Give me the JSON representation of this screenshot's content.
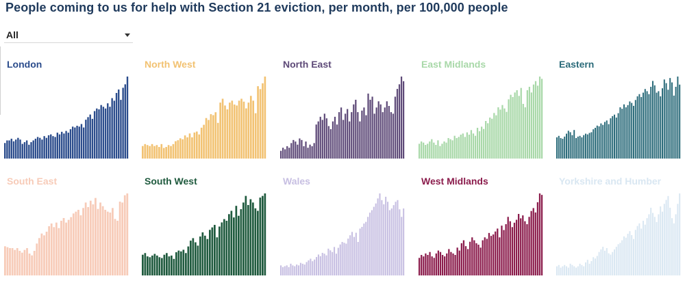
{
  "title": "People coming to us for help with Section 21 eviction, per month, per 100,000 people",
  "filter": {
    "value": "All"
  },
  "chart_data": [
    {
      "type": "bar",
      "title": "London",
      "color": "#2b4c8c",
      "values": [
        18,
        21,
        21,
        23,
        20,
        22,
        24,
        22,
        17,
        19,
        21,
        16,
        19,
        21,
        23,
        25,
        24,
        22,
        26,
        24,
        27,
        28,
        26,
        25,
        30,
        28,
        31,
        29,
        32,
        30,
        34,
        37,
        36,
        38,
        37,
        40,
        36,
        45,
        48,
        51,
        46,
        55,
        58,
        57,
        62,
        60,
        58,
        64,
        60,
        70,
        67,
        76,
        80,
        68,
        82,
        86,
        95
      ]
    },
    {
      "type": "bar",
      "title": "North West",
      "color": "#f2c272",
      "values": [
        13,
        15,
        14,
        13,
        15,
        13,
        14,
        12,
        15,
        11,
        12,
        14,
        13,
        15,
        18,
        19,
        21,
        20,
        24,
        22,
        26,
        22,
        27,
        28,
        25,
        32,
        35,
        42,
        40,
        46,
        45,
        48,
        37,
        58,
        62,
        55,
        51,
        58,
        60,
        56,
        55,
        60,
        62,
        59,
        52,
        58,
        65,
        60,
        47,
        75,
        72,
        78,
        85
      ]
    },
    {
      "type": "bar",
      "title": "North East",
      "color": "#5e4a78",
      "values": [
        5,
        7,
        6,
        8,
        7,
        10,
        12,
        11,
        9,
        13,
        12,
        8,
        11,
        7,
        9,
        8,
        10,
        22,
        24,
        27,
        25,
        29,
        26,
        21,
        19,
        24,
        27,
        22,
        30,
        33,
        25,
        29,
        32,
        24,
        30,
        35,
        38,
        30,
        24,
        31,
        33,
        28,
        42,
        38,
        40,
        29,
        33,
        37,
        35,
        30,
        33,
        37,
        34,
        30,
        29,
        40,
        45,
        48,
        53,
        50
      ]
    },
    {
      "type": "bar",
      "title": "East Midlands",
      "color": "#a8d8a8",
      "values": [
        13,
        15,
        14,
        12,
        13,
        15,
        17,
        14,
        12,
        16,
        11,
        13,
        15,
        14,
        18,
        17,
        16,
        20,
        18,
        19,
        21,
        22,
        19,
        23,
        21,
        25,
        22,
        20,
        27,
        24,
        28,
        26,
        33,
        31,
        36,
        35,
        40,
        38,
        45,
        43,
        47,
        44,
        41,
        52,
        56,
        54,
        58,
        60,
        55,
        62,
        48,
        45,
        60,
        63,
        58,
        65,
        68,
        64,
        72,
        70
      ]
    },
    {
      "type": "bar",
      "title": "Eastern",
      "color": "#2b6b7a",
      "values": [
        29,
        31,
        28,
        27,
        30,
        34,
        38,
        36,
        32,
        39,
        28,
        30,
        31,
        29,
        32,
        34,
        33,
        35,
        36,
        40,
        42,
        45,
        44,
        48,
        46,
        50,
        52,
        47,
        55,
        58,
        60,
        56,
        62,
        70,
        68,
        74,
        70,
        73,
        78,
        76,
        72,
        80,
        85,
        88,
        84,
        90,
        95,
        92,
        88,
        98,
        106,
        100,
        90,
        92,
        85,
        96,
        108,
        103,
        94,
        110,
        104,
        86,
        98,
        112,
        101
      ]
    },
    {
      "type": "bar",
      "title": "South East",
      "color": "#f7cbb8",
      "values": [
        32,
        31,
        30,
        30,
        28,
        30,
        27,
        25,
        28,
        30,
        24,
        22,
        27,
        35,
        41,
        46,
        44,
        48,
        54,
        57,
        53,
        58,
        52,
        60,
        63,
        58,
        61,
        64,
        68,
        70,
        72,
        66,
        74,
        80,
        75,
        82,
        78,
        85,
        73,
        80,
        76,
        72,
        70,
        69,
        74,
        62,
        60,
        81,
        80,
        88,
        90
      ]
    },
    {
      "type": "bar",
      "title": "South West",
      "color": "#1f5a3e",
      "values": [
        25,
        27,
        23,
        22,
        24,
        26,
        24,
        22,
        21,
        25,
        27,
        23,
        24,
        20,
        28,
        30,
        29,
        31,
        27,
        35,
        42,
        45,
        40,
        36,
        47,
        52,
        48,
        44,
        55,
        58,
        61,
        46,
        59,
        64,
        68,
        66,
        74,
        78,
        70,
        84,
        72,
        80,
        88,
        96,
        85,
        92,
        88,
        81,
        78,
        94,
        96,
        99
      ]
    },
    {
      "type": "bar",
      "title": "Wales",
      "color": "#c7bfe2",
      "values": [
        12,
        10,
        11,
        12,
        10,
        14,
        12,
        11,
        13,
        12,
        15,
        14,
        13,
        16,
        18,
        20,
        17,
        19,
        22,
        25,
        23,
        27,
        26,
        24,
        32,
        30,
        28,
        34,
        26,
        33,
        37,
        40,
        39,
        38,
        44,
        48,
        52,
        46,
        51,
        40,
        56,
        58,
        62,
        64,
        70,
        75,
        78,
        82,
        86,
        92,
        98,
        90,
        85,
        94,
        88,
        78,
        80,
        84,
        88,
        90,
        79,
        70,
        80
      ]
    },
    {
      "type": "bar",
      "title": "West Midlands",
      "color": "#8b1c4c",
      "values": [
        12,
        14,
        13,
        15,
        14,
        16,
        13,
        12,
        15,
        17,
        16,
        14,
        13,
        15,
        18,
        16,
        15,
        14,
        19,
        17,
        22,
        24,
        20,
        18,
        23,
        26,
        24,
        22,
        21,
        19,
        24,
        26,
        25,
        29,
        27,
        28,
        30,
        32,
        26,
        34,
        31,
        35,
        40,
        37,
        33,
        36,
        38,
        42,
        39,
        41,
        37,
        35,
        40,
        44,
        46,
        43,
        50,
        56,
        55
      ]
    },
    {
      "type": "bar",
      "title": "Yorkshire and Humber",
      "color": "#d9e7f2",
      "values": [
        7,
        8,
        6,
        7,
        8,
        7,
        6,
        9,
        8,
        7,
        6,
        7,
        9,
        8,
        7,
        10,
        12,
        9,
        11,
        14,
        13,
        15,
        18,
        20,
        22,
        19,
        21,
        17,
        16,
        18,
        20,
        22,
        24,
        25,
        27,
        30,
        29,
        32,
        34,
        31,
        28,
        35,
        38,
        40,
        36,
        42,
        39,
        44,
        47,
        52,
        48,
        45,
        41,
        47,
        53,
        49,
        55,
        58,
        61,
        52,
        44,
        40,
        47,
        55,
        63
      ]
    }
  ]
}
